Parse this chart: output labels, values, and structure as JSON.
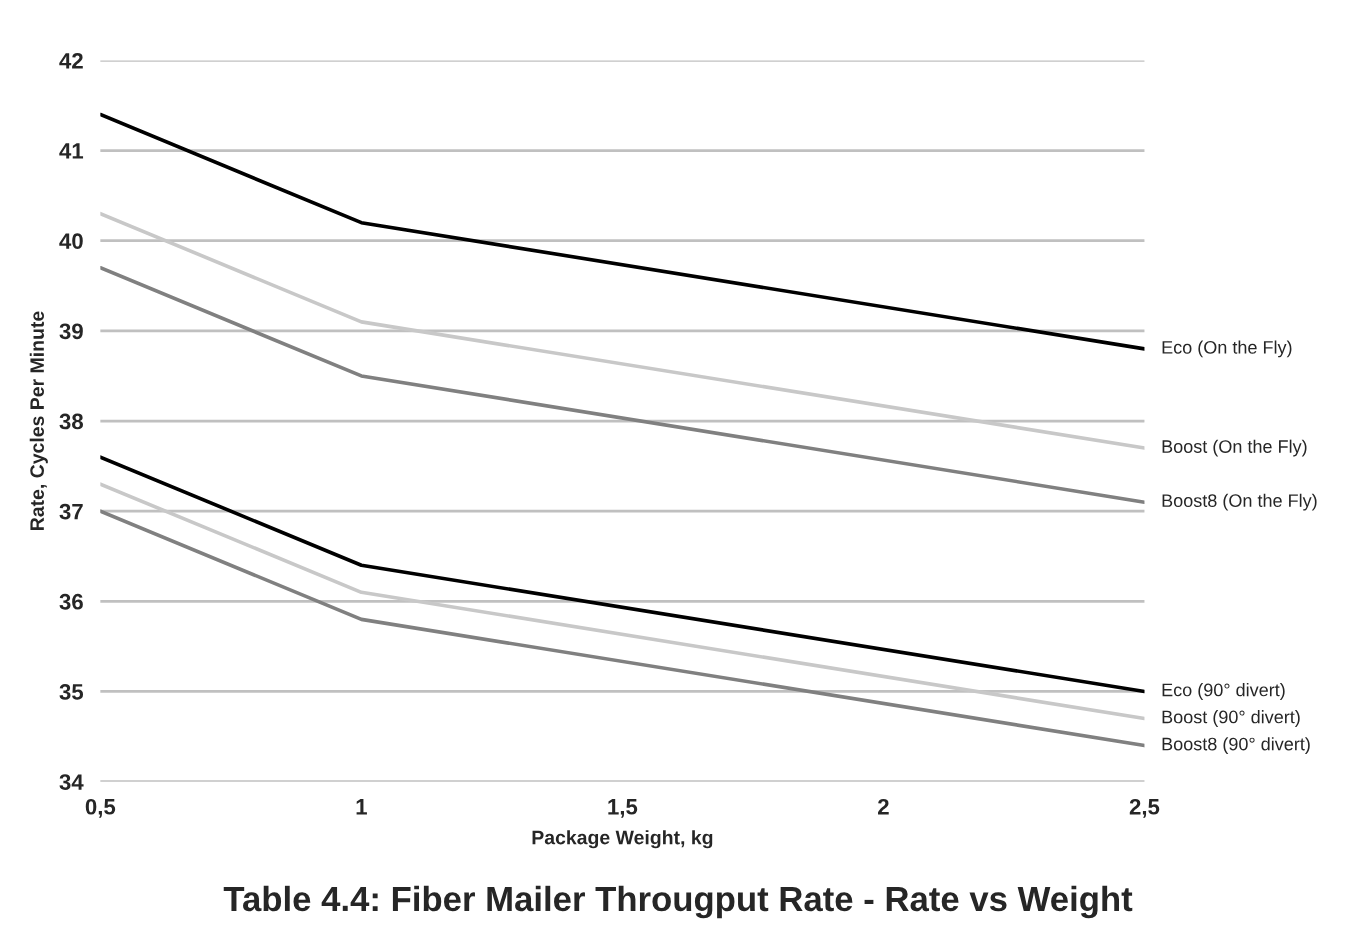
{
  "chart_data": {
    "type": "line",
    "title": "Table 4.4: Fiber Mailer Througput Rate - Rate vs Weight",
    "xlabel": "Package Weight, kg",
    "ylabel": "Rate, Cycles Per Minute",
    "x": [
      0.5,
      1,
      2.5
    ],
    "series": [
      {
        "name": "Eco (On the Fly)",
        "color": "#000000",
        "values": [
          41.4,
          40.2,
          38.8
        ]
      },
      {
        "name": "Boost (On the Fly)",
        "color": "#c8c8c8",
        "values": [
          40.3,
          39.1,
          37.7
        ]
      },
      {
        "name": "Boost8 (On the Fly)",
        "color": "#808080",
        "values": [
          39.7,
          38.5,
          37.1
        ]
      },
      {
        "name": "Eco (90° divert)",
        "color": "#000000",
        "values": [
          37.6,
          36.4,
          35.0
        ]
      },
      {
        "name": "Boost (90° divert)",
        "color": "#c8c8c8",
        "values": [
          37.3,
          36.1,
          34.7
        ]
      },
      {
        "name": "Boost8 (90° divert)",
        "color": "#808080",
        "values": [
          37.0,
          35.8,
          34.4
        ]
      }
    ],
    "xlim": [
      0.5,
      2.5
    ],
    "xticks": [
      {
        "value": 0.5,
        "label": "0,5"
      },
      1,
      {
        "value": 1.5,
        "label": "1,5"
      },
      2,
      {
        "value": 2.5,
        "label": "2,5"
      }
    ],
    "ylim": [
      34,
      42
    ],
    "yticks": [
      34,
      35,
      36,
      37,
      38,
      39,
      40,
      41,
      42
    ],
    "grid": "y",
    "legend": false,
    "marker": "none",
    "line_style": "solid"
  }
}
